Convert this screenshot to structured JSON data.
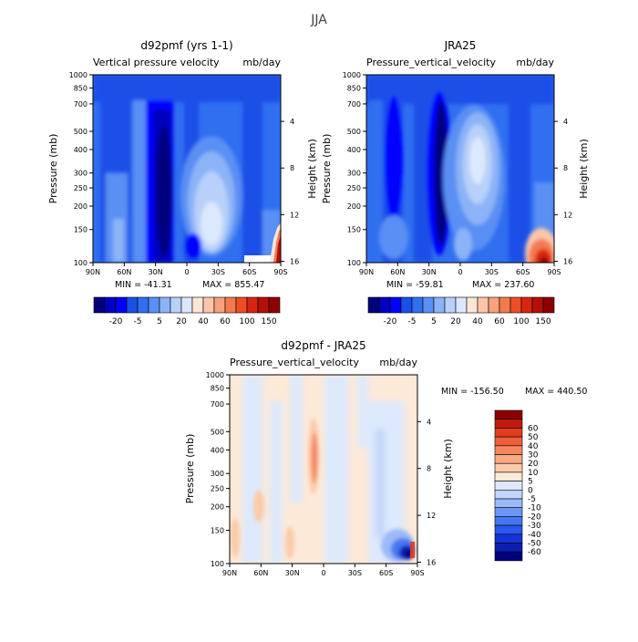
{
  "figure": {
    "title": "JJA",
    "colors": {
      "full": [
        "#00007f",
        "#0000bf",
        "#0000ff",
        "#1a4fe8",
        "#2f6ff0",
        "#5a8ff4",
        "#8cb3f7",
        "#b8d0fa",
        "#dce8fd",
        "#fde6d6",
        "#fbc6a8",
        "#f8a17c",
        "#f4794f",
        "#ee4e26",
        "#d8250f",
        "#b40f0a",
        "#8c0000"
      ],
      "diff": [
        "#00007f",
        "#0a1fb0",
        "#1434d8",
        "#2a58ee",
        "#4677f3",
        "#6c97f6",
        "#9bbaf8",
        "#c2d6fb",
        "#dde9fd",
        "#fde9d8",
        "#fbcaa9",
        "#f9ab85",
        "#f6865f",
        "#f05f3c",
        "#e33b1f",
        "#c11b0e",
        "#8c0000"
      ]
    }
  },
  "panels": [
    {
      "title": "d92pmf (yrs 1-1)",
      "subtitle_left": "Vertical pressure velocity",
      "subtitle_right": "mb/day",
      "ylabel_left": "Pressure (mb)",
      "ylabel_right": "Height (km)",
      "min_label": "MIN = -41.31",
      "max_label": "MAX = 855.47",
      "colorbar_labels": [
        "-20",
        "-5",
        "5",
        "20",
        "40",
        "60",
        "100",
        "150"
      ]
    },
    {
      "title": "JRA25",
      "subtitle_left": "Pressure_vertical_velocity",
      "subtitle_right": "mb/day",
      "ylabel_left": "Pressure (mb)",
      "ylabel_right": "Height (km)",
      "min_label": "MIN = -59.81",
      "max_label": "MAX = 237.60",
      "colorbar_labels": [
        "-20",
        "-5",
        "5",
        "20",
        "40",
        "60",
        "100",
        "150"
      ]
    },
    {
      "title": "d92pmf - JRA25",
      "subtitle_left": "Pressure_vertical_velocity",
      "subtitle_right": "mb/day",
      "ylabel_left": "Pressure (mb)",
      "ylabel_right": "Height (km)",
      "min_label": "MIN = -156.50",
      "max_label": "MAX = 440.50",
      "colorbar_labels": [
        "60",
        "50",
        "40",
        "30",
        "20",
        "10",
        "5",
        "0",
        "-5",
        "-10",
        "-20",
        "-30",
        "-40",
        "-50",
        "-60"
      ]
    }
  ],
  "chart_data": [
    {
      "type": "heatmap",
      "title": "d92pmf (yrs 1-1)",
      "subtitle": "Vertical pressure velocity mb/day",
      "x_ticks": [
        "90N",
        "60N",
        "30N",
        "0",
        "30S",
        "60S",
        "90S"
      ],
      "y_ticks_left": [
        "100",
        "150",
        "200",
        "250",
        "300",
        "400",
        "500",
        "700",
        "850",
        "1000"
      ],
      "y_ticks_right": [
        "16",
        "12",
        "8",
        "4"
      ],
      "xlabel": "",
      "ylabel": "Pressure (mb)",
      "ylabel_right": "Height (km)",
      "min": -41.31,
      "max": 855.47,
      "colorbar_levels": [
        -20,
        -5,
        5,
        20,
        40,
        60,
        100,
        150
      ]
    },
    {
      "type": "heatmap",
      "title": "JRA25",
      "subtitle": "Pressure_vertical_velocity mb/day",
      "x_ticks": [
        "90N",
        "60N",
        "30N",
        "0",
        "30S",
        "60S",
        "90S"
      ],
      "y_ticks_left": [
        "100",
        "150",
        "200",
        "250",
        "300",
        "400",
        "500",
        "700",
        "850",
        "1000"
      ],
      "y_ticks_right": [
        "16",
        "12",
        "8",
        "4"
      ],
      "xlabel": "",
      "ylabel": "Pressure (mb)",
      "ylabel_right": "Height (km)",
      "min": -59.81,
      "max": 237.6,
      "colorbar_levels": [
        -20,
        -5,
        5,
        20,
        40,
        60,
        100,
        150
      ]
    },
    {
      "type": "heatmap",
      "title": "d92pmf - JRA25",
      "subtitle": "Pressure_vertical_velocity mb/day",
      "x_ticks": [
        "90N",
        "60N",
        "30N",
        "0",
        "30S",
        "60S",
        "90S"
      ],
      "y_ticks_left": [
        "100",
        "150",
        "200",
        "250",
        "300",
        "400",
        "500",
        "700",
        "850",
        "1000"
      ],
      "y_ticks_right": [
        "16",
        "12",
        "8",
        "4"
      ],
      "xlabel": "",
      "ylabel": "Pressure (mb)",
      "ylabel_right": "Height (km)",
      "min": -156.5,
      "max": 440.5,
      "colorbar_levels": [
        60,
        50,
        40,
        30,
        20,
        10,
        5,
        0,
        -5,
        -10,
        -20,
        -30,
        -40,
        -50,
        -60
      ]
    }
  ]
}
